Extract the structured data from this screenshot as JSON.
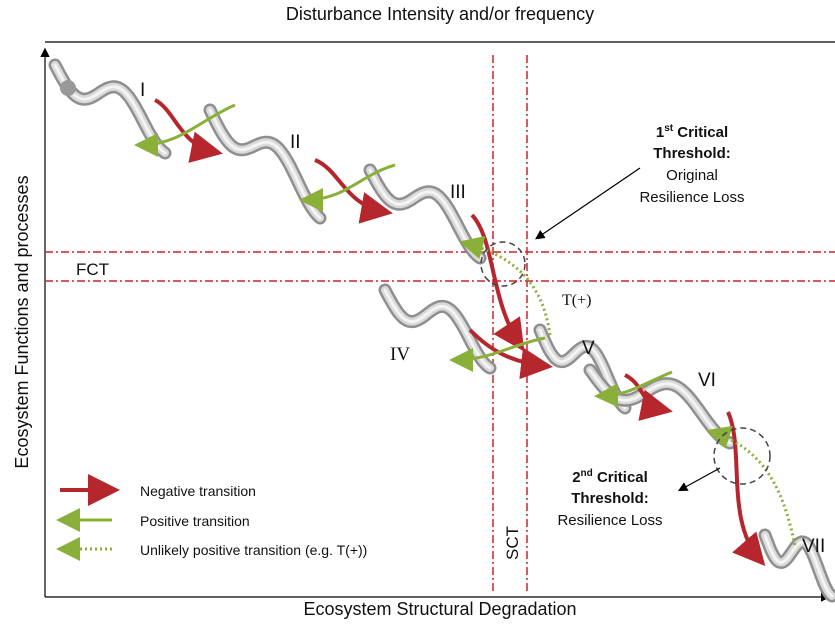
{
  "header": {
    "title": "Disturbance Intensity and/or frequency"
  },
  "axes": {
    "y_label": "Ecosystem Functions and processes",
    "x_label": "Ecosystem Structural Degradation"
  },
  "stages": [
    "I",
    "II",
    "III",
    "IV",
    "V",
    "VI",
    "VII"
  ],
  "thresholds": {
    "fct": "FCT",
    "sct": "SCT"
  },
  "transition_label": "T(+)",
  "annotations": [
    {
      "ordinal": "1",
      "suffix": "st",
      "heading": [
        "Critical",
        "Threshold:"
      ],
      "lines": [
        "Original",
        "Resilience Loss"
      ]
    },
    {
      "ordinal": "2",
      "suffix": "nd",
      "heading": [
        "Critical",
        "Threshold:"
      ],
      "lines": [
        "Resilience Loss"
      ]
    }
  ],
  "legend": [
    {
      "label": "Negative transition"
    },
    {
      "label": "Positive transition"
    },
    {
      "label": "Unlikely positive transition (e.g. T(+))"
    }
  ]
}
